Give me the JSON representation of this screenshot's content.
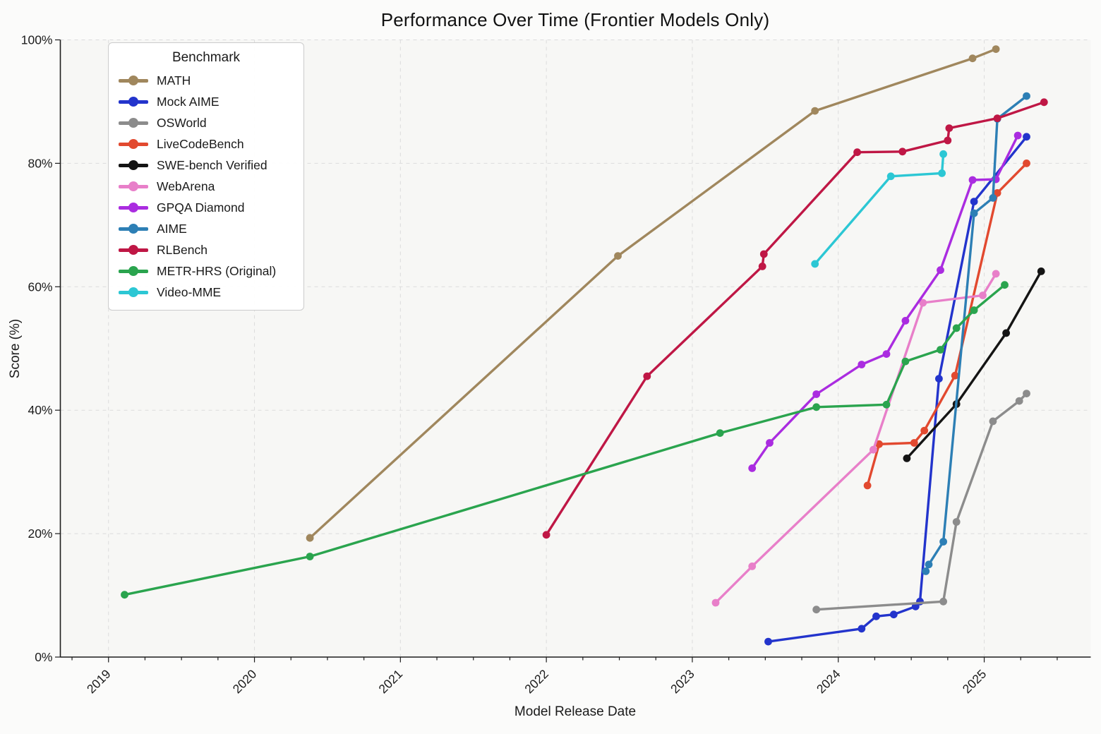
{
  "chart_data": {
    "type": "line",
    "title": "Performance Over Time (Frontier Models Only)",
    "xlabel": "Model Release Date",
    "ylabel": "Score (%)",
    "legend_title": "Benchmark",
    "legend_position": "upper left",
    "grid": "major-dashed",
    "xlim": [
      2018.67,
      2025.73
    ],
    "ylim": [
      0,
      100
    ],
    "x_ticks": [
      2019,
      2020,
      2021,
      2022,
      2023,
      2024,
      2025
    ],
    "x_tick_labels": [
      "2019",
      "2020",
      "2021",
      "2022",
      "2023",
      "2024",
      "2025"
    ],
    "x_minor_tick_step": 0.25,
    "y_ticks": [
      0,
      20,
      40,
      60,
      80,
      100
    ],
    "y_tick_labels": [
      "0%",
      "20%",
      "40%",
      "60%",
      "80%",
      "100%"
    ],
    "series": [
      {
        "name": "MATH",
        "color": "#a0875d",
        "points": [
          [
            2020.38,
            19.3
          ],
          [
            2022.49,
            65.0
          ],
          [
            2023.84,
            88.5
          ],
          [
            2024.92,
            97.0
          ],
          [
            2025.08,
            98.5
          ]
        ]
      },
      {
        "name": "Mock AIME",
        "color": "#2334cc",
        "points": [
          [
            2023.52,
            2.5
          ],
          [
            2024.16,
            4.6
          ],
          [
            2024.26,
            6.6
          ],
          [
            2024.38,
            6.9
          ],
          [
            2024.53,
            8.2
          ],
          [
            2024.56,
            9.0
          ],
          [
            2024.69,
            45.1
          ],
          [
            2024.93,
            73.8
          ],
          [
            2025.29,
            84.3
          ]
        ]
      },
      {
        "name": "OSWorld",
        "color": "#8c8c8c",
        "points": [
          [
            2023.85,
            7.7
          ],
          [
            2024.72,
            9.0
          ],
          [
            2024.81,
            21.9
          ],
          [
            2025.06,
            38.2
          ],
          [
            2025.24,
            41.5
          ],
          [
            2025.29,
            42.7
          ]
        ]
      },
      {
        "name": "LiveCodeBench",
        "color": "#e2492f",
        "points": [
          [
            2024.2,
            27.8
          ],
          [
            2024.28,
            34.5
          ],
          [
            2024.52,
            34.7
          ],
          [
            2024.59,
            36.7
          ],
          [
            2024.8,
            45.6
          ],
          [
            2025.09,
            75.2
          ],
          [
            2025.29,
            80.0
          ]
        ]
      },
      {
        "name": "SWE-bench Verified",
        "color": "#141414",
        "points": [
          [
            2024.47,
            32.2
          ],
          [
            2024.81,
            41.0
          ],
          [
            2025.15,
            52.5
          ],
          [
            2025.39,
            62.5
          ]
        ]
      },
      {
        "name": "WebArena",
        "color": "#e87fc9",
        "points": [
          [
            2023.16,
            8.8
          ],
          [
            2023.41,
            14.7
          ],
          [
            2024.24,
            33.6
          ],
          [
            2024.58,
            57.4
          ],
          [
            2024.99,
            58.6
          ],
          [
            2025.08,
            62.1
          ]
        ]
      },
      {
        "name": "GPQA Diamond",
        "color": "#aa2ce0",
        "points": [
          [
            2023.41,
            30.6
          ],
          [
            2023.53,
            34.7
          ],
          [
            2023.85,
            42.6
          ],
          [
            2024.16,
            47.4
          ],
          [
            2024.33,
            49.1
          ],
          [
            2024.46,
            54.5
          ],
          [
            2024.7,
            62.7
          ],
          [
            2024.92,
            77.3
          ],
          [
            2025.08,
            77.4
          ],
          [
            2025.23,
            84.5
          ]
        ]
      },
      {
        "name": "AIME",
        "color": "#2d7fb5",
        "points": [
          [
            2024.6,
            13.9
          ],
          [
            2024.62,
            15.0
          ],
          [
            2024.72,
            18.7
          ],
          [
            2024.93,
            71.9
          ],
          [
            2025.06,
            74.4
          ],
          [
            2025.09,
            87.2
          ],
          [
            2025.29,
            90.9
          ]
        ]
      },
      {
        "name": "RLBench",
        "color": "#bf1745",
        "points": [
          [
            2022.0,
            19.8
          ],
          [
            2022.69,
            45.5
          ],
          [
            2023.48,
            63.3
          ],
          [
            2023.49,
            65.3
          ],
          [
            2024.13,
            81.8
          ],
          [
            2024.44,
            81.9
          ],
          [
            2024.75,
            83.7
          ],
          [
            2024.76,
            85.7
          ],
          [
            2025.09,
            87.3
          ],
          [
            2025.41,
            89.9
          ]
        ]
      },
      {
        "name": "METR-HRS (Original)",
        "color": "#2aa44e",
        "points": [
          [
            2019.11,
            10.1
          ],
          [
            2020.38,
            16.3
          ],
          [
            2023.19,
            36.3
          ],
          [
            2023.85,
            40.5
          ],
          [
            2024.33,
            40.9
          ],
          [
            2024.46,
            47.9
          ],
          [
            2024.7,
            49.8
          ],
          [
            2024.81,
            53.3
          ],
          [
            2024.93,
            56.2
          ],
          [
            2025.14,
            60.3
          ]
        ]
      },
      {
        "name": "Video-MME",
        "color": "#2cc7d4",
        "points": [
          [
            2023.84,
            63.7
          ],
          [
            2024.36,
            77.9
          ],
          [
            2024.71,
            78.4
          ],
          [
            2024.72,
            81.5
          ]
        ]
      }
    ],
    "style": {
      "plot_bg": "#f7f7f5",
      "fig_bg": "#fbfbfa",
      "grid_color": "#dcdcdc",
      "spine_color": "#1c1c1c",
      "tick_text_color": "#1c1c1c",
      "line_width": 3.4,
      "marker_radius": 5.4
    }
  }
}
